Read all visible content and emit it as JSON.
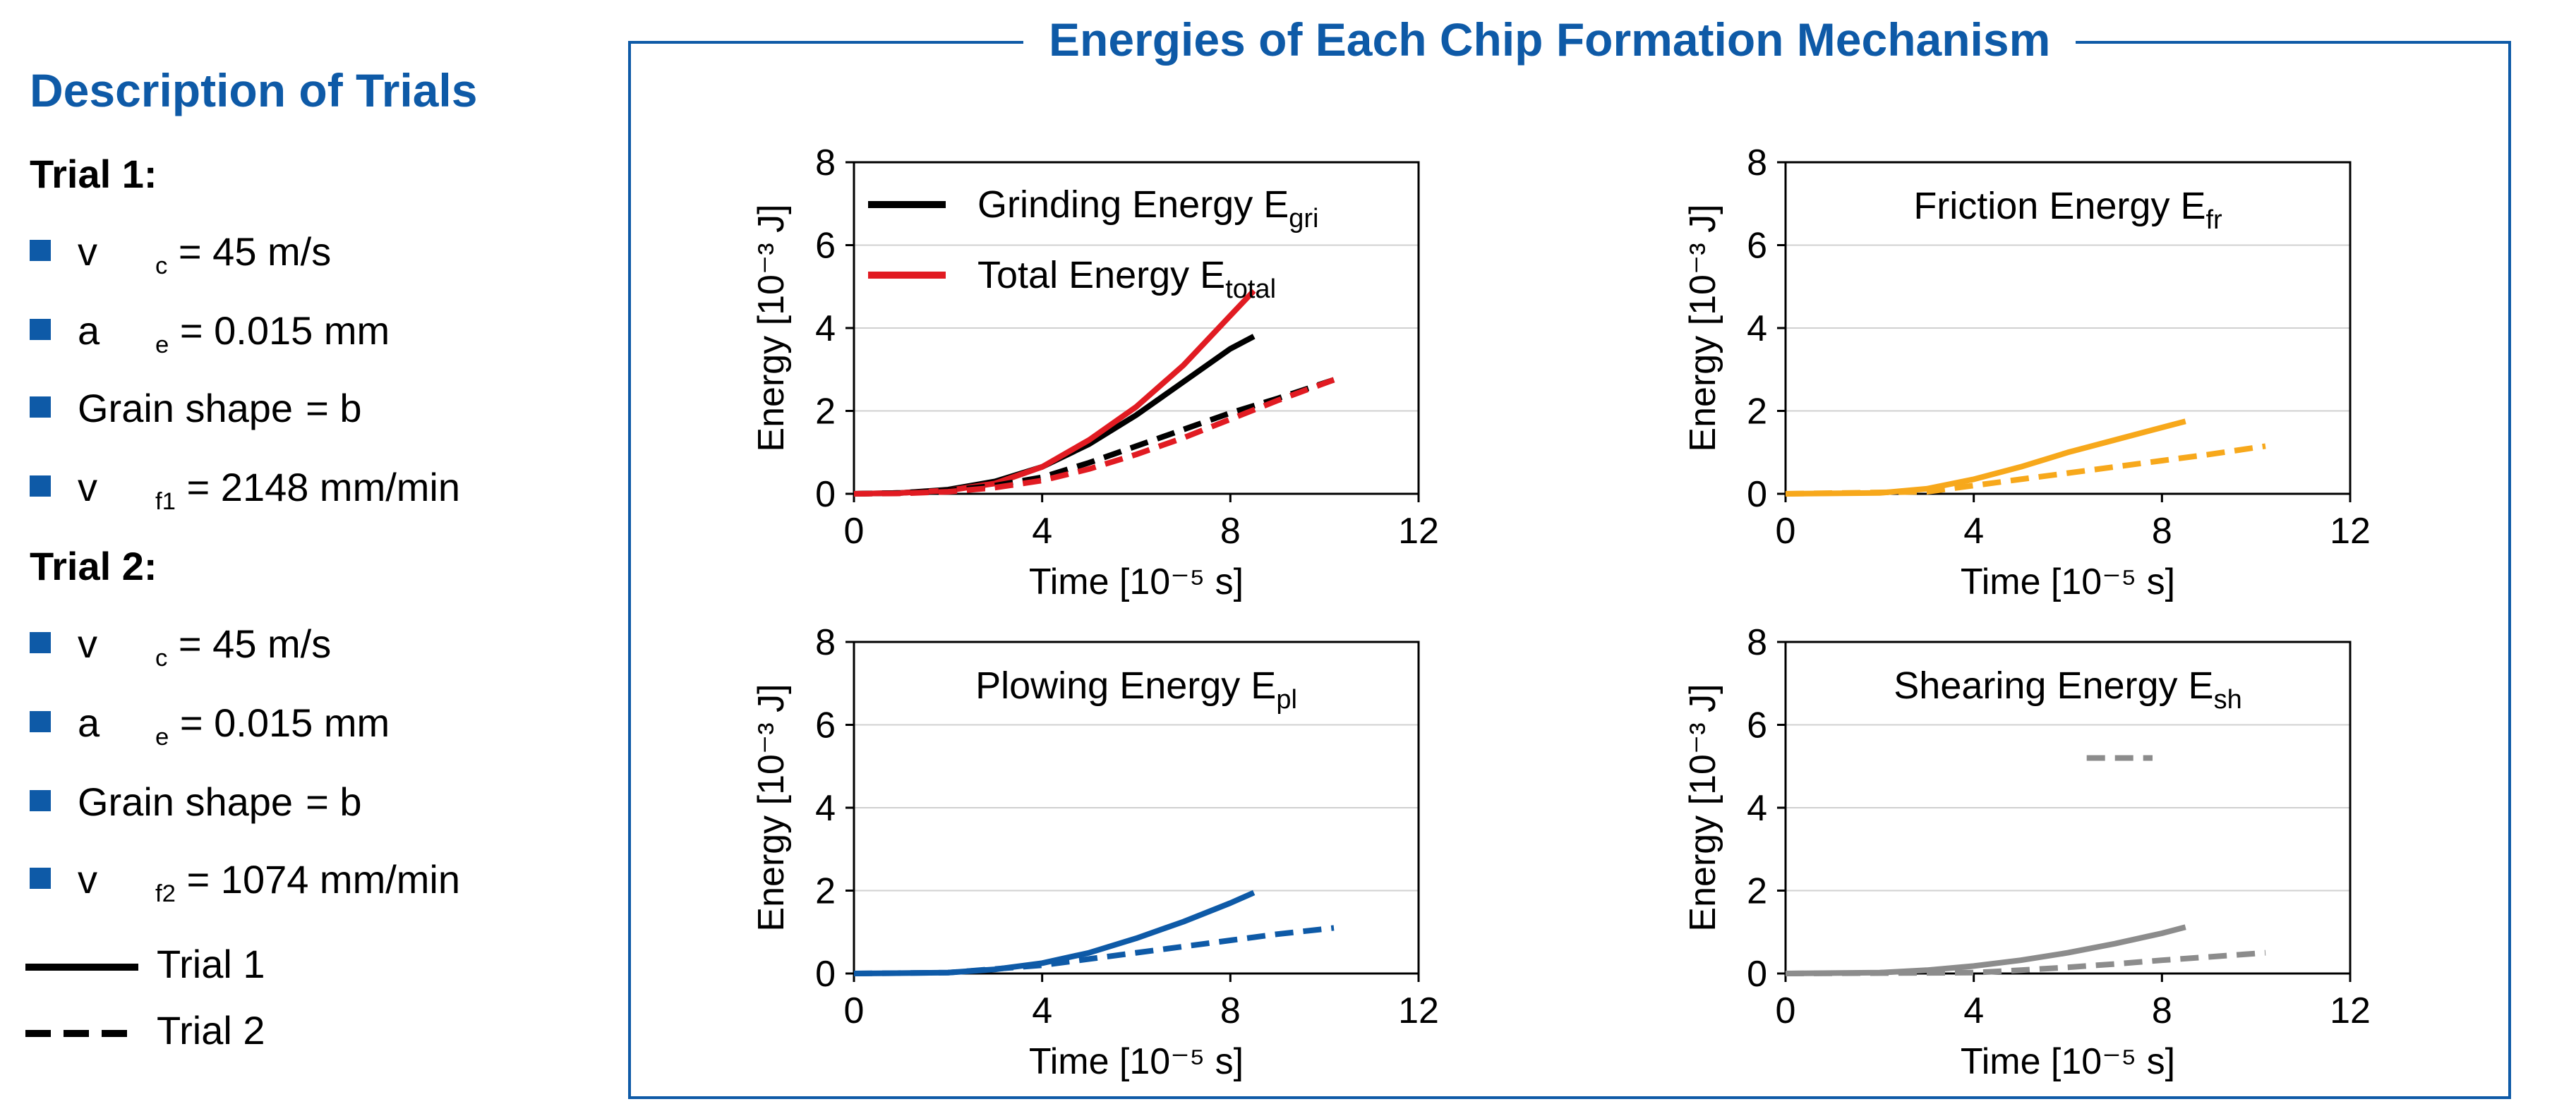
{
  "left_panel": {
    "title": "Description of Trials",
    "trial1": {
      "heading": "Trial 1:",
      "params": [
        {
          "sym": "v",
          "sub": "c",
          "val": "= 45 m/s"
        },
        {
          "sym": "a",
          "sub": "e",
          "val": "= 0.015 mm"
        },
        {
          "sym": "Grain shape",
          "sub": "",
          "val": "= b"
        },
        {
          "sym": "v",
          "sub": "f1",
          "val": "= 2148 mm/min"
        }
      ]
    },
    "trial2": {
      "heading": "Trial 2:",
      "params": [
        {
          "sym": "v",
          "sub": "c",
          "val": "= 45 m/s"
        },
        {
          "sym": "a",
          "sub": "e",
          "val": "= 0.015 mm"
        },
        {
          "sym": "Grain shape",
          "sub": "",
          "val": "= b"
        },
        {
          "sym": "v",
          "sub": "f2",
          "val": "= 1074 mm/min"
        }
      ]
    },
    "line_legend": {
      "solid": "Trial 1",
      "dashed": "Trial 2"
    }
  },
  "frame_title": "Energies of Each Chip Formation Mechanism",
  "colors": {
    "blue": "#0e5aa7",
    "black": "#000000",
    "red": "#e11b22",
    "orange": "#f7a81b",
    "gray": "#8c8c8c"
  },
  "chart_data": [
    {
      "type": "line",
      "id": "grinding",
      "title": "",
      "xlabel": "Time [10⁻⁵ s]",
      "ylabel": "Energy [10⁻³ J]",
      "xlim": [
        0,
        12
      ],
      "ylim": [
        0,
        8
      ],
      "xticks": [
        0,
        4,
        8,
        12
      ],
      "yticks": [
        0,
        2,
        4,
        6,
        8
      ],
      "grid": "horizontal",
      "legend": [
        {
          "label": "Grinding Energy E",
          "sub": "gri",
          "color": "#000000"
        },
        {
          "label": "Total Energy E",
          "sub": "total",
          "color": "#e11b22"
        }
      ],
      "series": [
        {
          "name": "Grinding Energy E_gri, Trial 1",
          "color": "#000000",
          "dash": false,
          "x": [
            0,
            1,
            2,
            3,
            4,
            5,
            6,
            7,
            8,
            8.5
          ],
          "y": [
            0,
            0.02,
            0.1,
            0.3,
            0.65,
            1.2,
            1.9,
            2.7,
            3.5,
            3.8
          ]
        },
        {
          "name": "Total Energy E_total, Trial 1",
          "color": "#e11b22",
          "dash": false,
          "x": [
            0,
            1,
            2,
            3,
            4,
            5,
            6,
            7,
            8,
            8.5
          ],
          "y": [
            0,
            0.02,
            0.08,
            0.25,
            0.65,
            1.3,
            2.1,
            3.1,
            4.3,
            4.9
          ]
        },
        {
          "name": "Grinding Energy E_gri, Trial 2",
          "color": "#000000",
          "dash": true,
          "x": [
            0,
            1,
            2,
            3,
            4,
            5,
            6,
            7,
            8,
            9,
            10.2
          ],
          "y": [
            0,
            0.02,
            0.08,
            0.2,
            0.4,
            0.75,
            1.15,
            1.55,
            1.95,
            2.3,
            2.75
          ]
        },
        {
          "name": "Total Energy E_total, Trial 2",
          "color": "#e11b22",
          "dash": true,
          "x": [
            0,
            1,
            2,
            3,
            4,
            5,
            6,
            7,
            8,
            9,
            10.2
          ],
          "y": [
            0,
            0.01,
            0.05,
            0.15,
            0.32,
            0.6,
            0.95,
            1.35,
            1.8,
            2.25,
            2.75
          ]
        }
      ]
    },
    {
      "type": "line",
      "id": "friction",
      "title": "Friction Energy E",
      "title_sub": "fr",
      "xlabel": "Time [10⁻⁵ s]",
      "ylabel": "Energy [10⁻³ J]",
      "xlim": [
        0,
        12
      ],
      "ylim": [
        0,
        8
      ],
      "xticks": [
        0,
        4,
        8,
        12
      ],
      "yticks": [
        0,
        2,
        4,
        6,
        8
      ],
      "grid": "horizontal",
      "series": [
        {
          "name": "Friction Energy E_fr, Trial 1",
          "color": "#f7a81b",
          "dash": false,
          "x": [
            0,
            2,
            3,
            4,
            5,
            6,
            7,
            8,
            8.5
          ],
          "y": [
            0,
            0.02,
            0.12,
            0.35,
            0.65,
            1.0,
            1.3,
            1.6,
            1.75
          ]
        },
        {
          "name": "Friction Energy E_fr, Trial 2",
          "color": "#f7a81b",
          "dash": true,
          "x": [
            0,
            3,
            4,
            5,
            6,
            7,
            8,
            9,
            10.2
          ],
          "y": [
            0,
            0.05,
            0.2,
            0.35,
            0.5,
            0.65,
            0.8,
            0.95,
            1.15
          ]
        }
      ]
    },
    {
      "type": "line",
      "id": "plowing",
      "title": "Plowing Energy E",
      "title_sub": "pl",
      "xlabel": "Time [10⁻⁵ s]",
      "ylabel": "Energy [10⁻³ J]",
      "xlim": [
        0,
        12
      ],
      "ylim": [
        0,
        8
      ],
      "xticks": [
        0,
        4,
        8,
        12
      ],
      "yticks": [
        0,
        2,
        4,
        6,
        8
      ],
      "grid": "horizontal",
      "series": [
        {
          "name": "Plowing Energy E_pl, Trial 1",
          "color": "#0e5aa7",
          "dash": false,
          "x": [
            0,
            2,
            3,
            4,
            5,
            6,
            7,
            8,
            8.5
          ],
          "y": [
            0,
            0.02,
            0.1,
            0.25,
            0.5,
            0.85,
            1.25,
            1.7,
            1.95
          ]
        },
        {
          "name": "Plowing Energy E_pl, Trial 2",
          "color": "#0e5aa7",
          "dash": true,
          "x": [
            0,
            2,
            4,
            5,
            6,
            7,
            8,
            9,
            10.2
          ],
          "y": [
            0,
            0.02,
            0.2,
            0.35,
            0.5,
            0.65,
            0.8,
            0.95,
            1.1
          ]
        }
      ]
    },
    {
      "type": "line",
      "id": "shearing",
      "title": "Shearing Energy E",
      "title_sub": "sh",
      "xlabel": "Time [10⁻⁵ s]",
      "ylabel": "Energy [10⁻³ J]",
      "xlim": [
        0,
        12
      ],
      "ylim": [
        0,
        8
      ],
      "xticks": [
        0,
        4,
        8,
        12
      ],
      "yticks": [
        0,
        2,
        4,
        6,
        8
      ],
      "grid": "horizontal",
      "series": [
        {
          "name": "Shearing Energy E_sh, Trial 1",
          "color": "#8c8c8c",
          "dash": false,
          "x": [
            0,
            2,
            3,
            4,
            5,
            6,
            7,
            8,
            8.5
          ],
          "y": [
            0,
            0.02,
            0.08,
            0.18,
            0.32,
            0.5,
            0.72,
            0.97,
            1.12
          ]
        },
        {
          "name": "Shearing Energy E_sh, Trial 2",
          "color": "#8c8c8c",
          "dash": true,
          "x": [
            0,
            4,
            5,
            6,
            7,
            8,
            9,
            10.2
          ],
          "y": [
            0,
            0.02,
            0.08,
            0.15,
            0.23,
            0.32,
            0.4,
            0.5
          ]
        },
        {
          "name": "Dashed marker segment",
          "color": "#8c8c8c",
          "dash": true,
          "x": [
            6.4,
            7.8
          ],
          "y": [
            5.2,
            5.2
          ]
        }
      ]
    }
  ]
}
